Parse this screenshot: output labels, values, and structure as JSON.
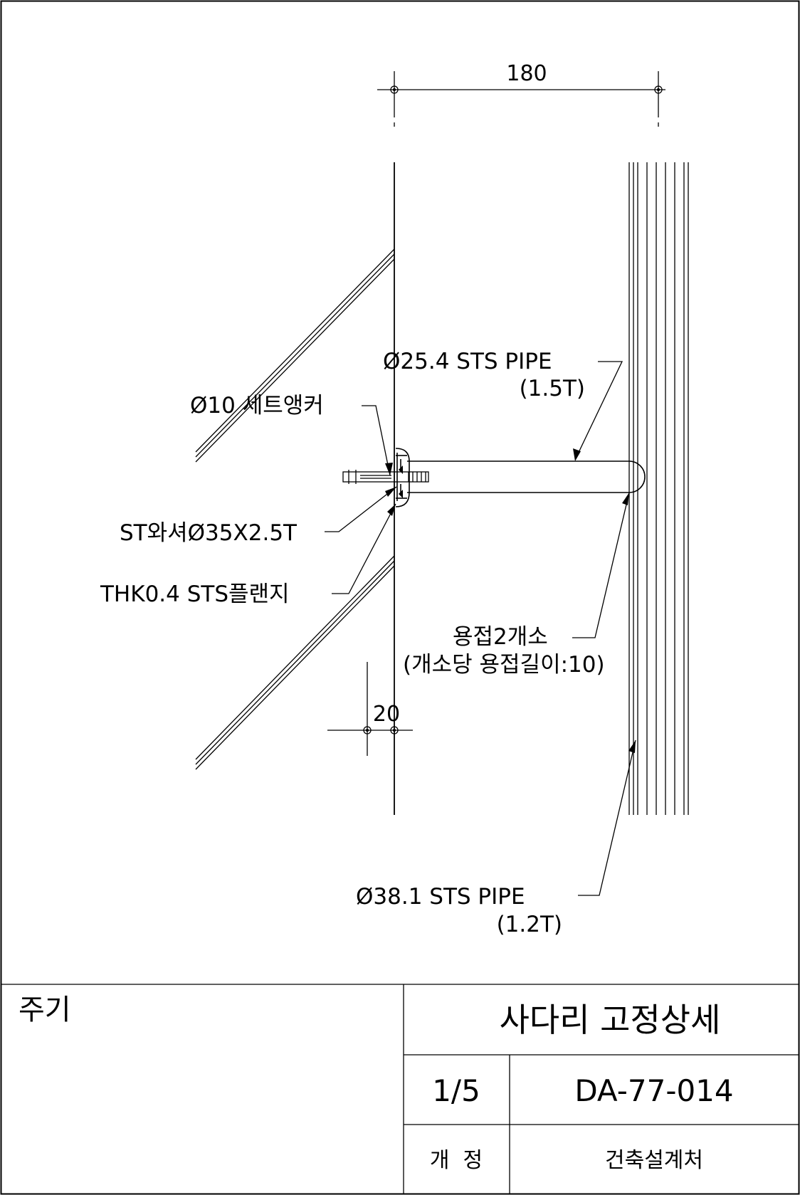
{
  "drawing": {
    "dimensions": {
      "top": "180",
      "bottom": "20"
    },
    "callouts": {
      "pipe_small_size": "Ø25.4 STS PIPE",
      "pipe_small_thk": "(1.5T)",
      "anchor": "Ø10 세트앵커",
      "washer": "ST와셔Ø35X2.5T",
      "flange": "THK0.4 STS플랜지",
      "weld": "용접2개소",
      "weld_detail": "(개소당 용접길이:10)",
      "pipe_large_size": "Ø38.1 STS PIPE",
      "pipe_large_thk": "(1.2T)"
    }
  },
  "title_block": {
    "notes_label": "주기",
    "title": "사다리 고정상세",
    "sheet": "1/5",
    "drawing_no": "DA-77-014",
    "revision_label": "개  정",
    "department": "건축설계처"
  }
}
